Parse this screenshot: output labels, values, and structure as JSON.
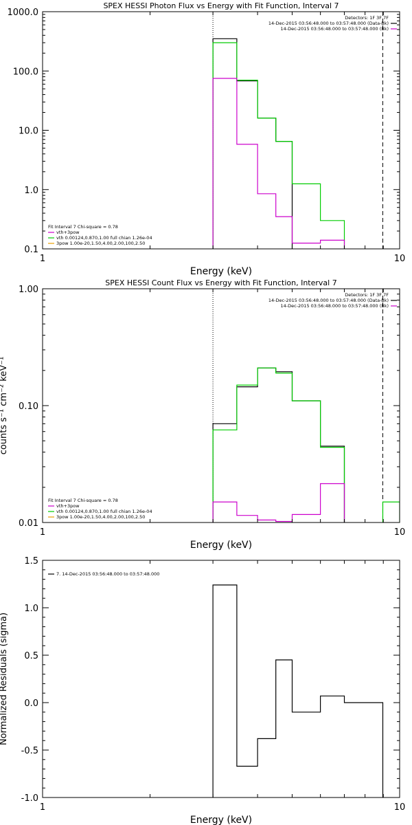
{
  "chart_data": [
    {
      "type": "line",
      "title": "SPEX HESSI Photon Flux vs Energy with Fit Function, Interval 7",
      "xlabel": "Energy (keV)",
      "ylabel": "",
      "xscale": "log",
      "yscale": "log",
      "xlim": [
        1,
        10
      ],
      "ylim": [
        0.1,
        1000
      ],
      "xticks": [
        1,
        10
      ],
      "xtick_labels": [
        "1",
        "10"
      ],
      "yticks": [
        0.1,
        1,
        10,
        100,
        1000
      ],
      "ytick_labels": [
        "0.1",
        "1.0",
        "10.0",
        "100.0",
        "1000.0"
      ],
      "grid": false,
      "vlines": [
        {
          "x": 3.0,
          "style": "dotted"
        },
        {
          "x": 8.97,
          "style": "dashed"
        }
      ],
      "info_lines": [
        "Detectors: 1F 3F 7F",
        "14-Dec-2015 03:56:48.000 to 03:57:48.000 (Data-Bk)",
        "14-Dec-2015 03:56:48.000 to 03:57:48.000 (Bk)"
      ],
      "info_colors": [
        "#000000",
        "#000000",
        "#cc00cc"
      ],
      "legend_lines": [
        "Fit Interval 7   Chi-square = 0.78",
        "vth+3pow",
        "vth 0.00124,0.870,1.00  full chian 1.26e-04",
        "3pow 1.00e-20,1.50,4.00,2.00,100,2.50"
      ],
      "legend_colors": [
        "#000000",
        "#cc00cc",
        "#00cc00",
        "#e8a000"
      ],
      "legend_placement": "bottom-left",
      "series": [
        {
          "name": "Data-Bk",
          "color": "#000000",
          "edges": [
            3.0,
            3.5,
            4.0,
            4.5,
            5.0,
            6.0,
            7.0,
            8.0,
            8.97
          ],
          "values": [
            350,
            68,
            16,
            6.5,
            0,
            0,
            0,
            0
          ]
        },
        {
          "name": "vth+3pow",
          "color": "#00cc00",
          "edges": [
            3.0,
            3.5,
            4.0,
            4.5,
            5.0,
            6.0,
            7.0,
            8.0,
            8.97
          ],
          "values": [
            300,
            70,
            16,
            6.5,
            1.25,
            0.3,
            0,
            0
          ]
        },
        {
          "name": "Bk",
          "color": "#cc00cc",
          "edges": [
            3.0,
            3.5,
            4.0,
            4.5,
            5.0,
            6.0,
            7.0,
            8.0,
            8.97
          ],
          "values": [
            75,
            5.8,
            0.85,
            0.35,
            0.125,
            0.14,
            0,
            0
          ]
        }
      ]
    },
    {
      "type": "line",
      "title": "SPEX HESSI Count Flux vs Energy with Fit Function, Interval 7",
      "xlabel": "Energy (keV)",
      "ylabel": "counts s⁻¹ cm⁻² keV⁻¹",
      "xscale": "log",
      "yscale": "log",
      "xlim": [
        1,
        10
      ],
      "ylim": [
        0.01,
        1.0
      ],
      "xticks": [
        1,
        10
      ],
      "xtick_labels": [
        "1",
        "10"
      ],
      "yticks": [
        0.01,
        0.1,
        1.0
      ],
      "ytick_labels": [
        "0.01",
        "0.10",
        "1.00"
      ],
      "grid": false,
      "vlines": [
        {
          "x": 3.0,
          "style": "dotted"
        },
        {
          "x": 8.97,
          "style": "dashed"
        }
      ],
      "info_lines": [
        "Detectors: 1F 3F 7F",
        "14-Dec-2015 03:56:48.000 to 03:57:48.000 (Data-Bk)",
        "14-Dec-2015 03:56:48.000 to 03:57:48.000 (Bk)"
      ],
      "info_colors": [
        "#000000",
        "#000000",
        "#cc00cc"
      ],
      "legend_lines": [
        "Fit Interval 7   Chi-square = 0.78",
        "vth+3pow",
        "vth 0.00124,0.870,1.00  full chian 1.26e-04",
        "3pow 1.00e-20,1.50,4.00,2.00,100,2.50"
      ],
      "legend_colors": [
        "#000000",
        "#cc00cc",
        "#00cc00",
        "#e8a000"
      ],
      "legend_placement": "bottom-left",
      "series": [
        {
          "name": "Data-Bk",
          "color": "#000000",
          "edges": [
            3.0,
            3.5,
            4.0,
            4.5,
            5.0,
            6.0,
            7.0,
            8.0,
            8.97
          ],
          "values": [
            0.07,
            0.145,
            0.21,
            0.195,
            0.11,
            0.045,
            0,
            0
          ]
        },
        {
          "name": "vth+3pow",
          "color": "#00cc00",
          "edges": [
            3.0,
            3.5,
            4.0,
            4.5,
            5.0,
            6.0,
            7.0,
            8.0,
            8.97,
            10.0
          ],
          "values": [
            0.062,
            0.15,
            0.21,
            0.19,
            0.11,
            0.044,
            0,
            0,
            0.015
          ]
        },
        {
          "name": "Bk",
          "color": "#cc00cc",
          "edges": [
            3.0,
            3.5,
            4.0,
            4.5,
            5.0,
            6.0,
            7.0,
            8.0,
            8.97
          ],
          "values": [
            0.015,
            0.0115,
            0.0105,
            0.0102,
            0.0117,
            0.0215,
            0,
            0
          ]
        }
      ]
    },
    {
      "type": "line",
      "title": "",
      "xlabel": "Energy (keV)",
      "ylabel": "Normalized Residuals (sigma)",
      "xscale": "log",
      "yscale": "linear",
      "xlim": [
        1,
        10
      ],
      "ylim": [
        -1.0,
        1.5
      ],
      "xticks": [
        1,
        10
      ],
      "xtick_labels": [
        "1",
        "10"
      ],
      "yticks": [
        -1.0,
        -0.5,
        0.0,
        0.5,
        1.0,
        1.5
      ],
      "ytick_labels": [
        "-1.0",
        "-0.5",
        "0.0",
        "0.5",
        "1.0",
        "1.5"
      ],
      "grid": false,
      "legend_lines": [
        "7. 14-Dec-2015 03:56:48.000 to 03:57:48.000"
      ],
      "legend_colors": [
        "#000000"
      ],
      "legend_placement": "top-left",
      "series": [
        {
          "name": "7. 14-Dec-2015 03:56:48.000 to 03:57:48.000",
          "color": "#000000",
          "edges": [
            3.0,
            3.5,
            4.0,
            4.5,
            5.0,
            6.0,
            7.0,
            8.0,
            8.97
          ],
          "values": [
            1.24,
            -0.67,
            -0.38,
            0.45,
            -0.1,
            0.07,
            0,
            0
          ]
        }
      ]
    }
  ]
}
